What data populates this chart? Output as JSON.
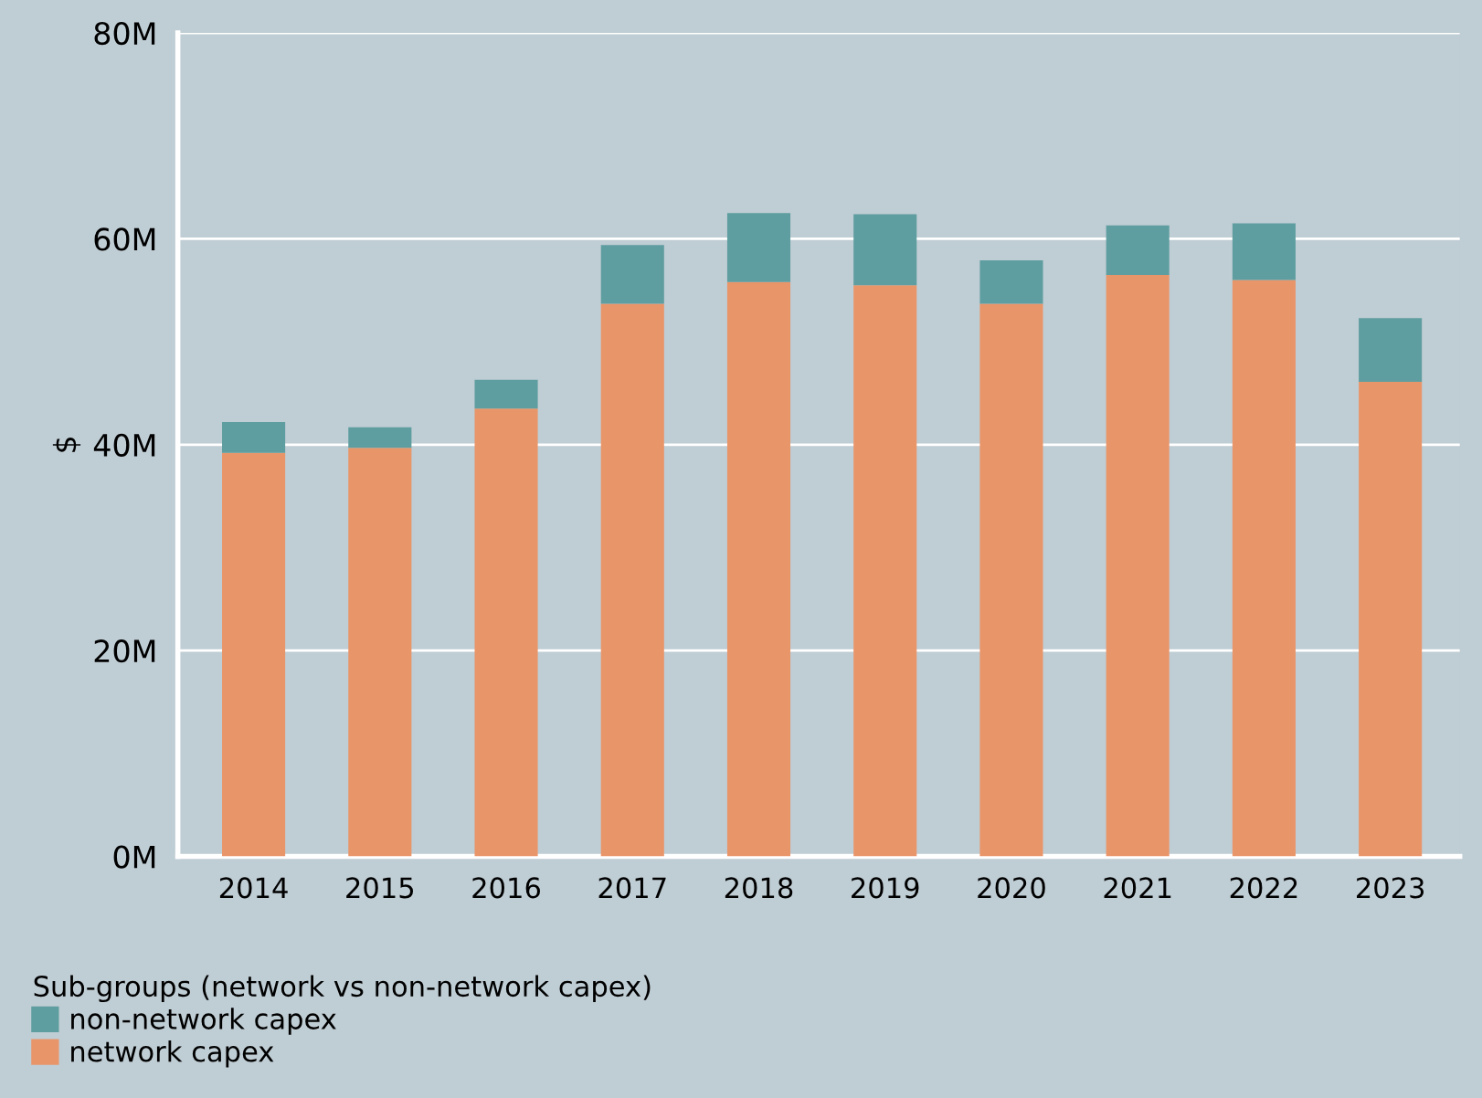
{
  "chart_data": {
    "type": "bar",
    "stacked": true,
    "ylabel": "$",
    "legend_title": "Sub-groups (network vs non-network capex)",
    "legend": "bottom left",
    "grid": "y",
    "categories": [
      "2014",
      "2015",
      "2016",
      "2017",
      "2018",
      "2019",
      "2020",
      "2021",
      "2022",
      "2023"
    ],
    "series": [
      {
        "name": "network capex",
        "color": "#e9956a",
        "values": [
          39.2,
          39.7,
          43.5,
          53.7,
          55.8,
          55.5,
          53.7,
          56.5,
          56.0,
          46.1
        ]
      },
      {
        "name": "non-network capex",
        "color": "#5f9ea0",
        "values": [
          3.0,
          2.0,
          2.8,
          5.7,
          6.7,
          6.9,
          4.2,
          4.8,
          5.5,
          6.2
        ]
      }
    ],
    "ylim": [
      0,
      80
    ],
    "yticks": [
      {
        "value": 0,
        "label": "0M"
      },
      {
        "value": 20,
        "label": "20M"
      },
      {
        "value": 40,
        "label": "40M"
      },
      {
        "value": 60,
        "label": "60M"
      },
      {
        "value": 80,
        "label": "80M"
      }
    ]
  }
}
